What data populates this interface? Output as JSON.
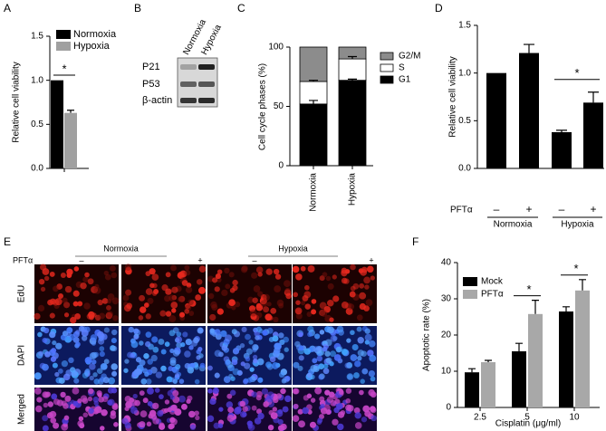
{
  "chart_data": [
    {
      "type": "bar",
      "panel": "A",
      "ylabel": "Relative cell viability",
      "series": [
        {
          "name": "Normoxia",
          "color": "#000000",
          "values": [
            1.0
          ]
        },
        {
          "name": "Hypoxia",
          "color": "#a0a0a0",
          "values": [
            0.63
          ],
          "errors": [
            0.03
          ]
        }
      ],
      "ylim": [
        0,
        1.5
      ],
      "yticks": [
        {
          "value": 0,
          "label": "0.0"
        },
        {
          "value": 0.5,
          "label": "0.5"
        },
        {
          "value": 1,
          "label": "1.0"
        },
        {
          "value": 1.5,
          "label": "1.5"
        }
      ],
      "annotation": "*"
    },
    {
      "type": "blot",
      "panel": "B",
      "lanes": [
        "Normoxia",
        "Hypoxia"
      ],
      "rows": [
        "P21",
        "P53",
        "β-actin"
      ]
    },
    {
      "type": "stacked-bar",
      "panel": "C",
      "ylabel": "Cell cycle phases (%)",
      "categories": [
        "Normoxia",
        "Hypoxia"
      ],
      "series": [
        {
          "name": "G1",
          "color": "#000000",
          "values": [
            52,
            72
          ],
          "errors": [
            3,
            1
          ]
        },
        {
          "name": "S",
          "color": "#ffffff",
          "values": [
            19,
            18
          ],
          "errors": [
            1,
            2
          ]
        },
        {
          "name": "G2/M",
          "color": "#8c8c8c",
          "values": [
            29,
            10
          ]
        }
      ],
      "ylim": [
        0,
        100
      ],
      "yticks": [
        0,
        50,
        100
      ]
    },
    {
      "type": "bar",
      "panel": "D",
      "ylabel": "Relative cell viability",
      "factor_label": "PFTα",
      "categories": [
        "–",
        "+",
        "–",
        "+"
      ],
      "groups": [
        "Normoxia",
        "Hypoxia"
      ],
      "values": [
        1.0,
        1.21,
        0.38,
        0.69
      ],
      "errors": [
        null,
        0.09,
        0.02,
        0.11
      ],
      "color": "#000000",
      "ylim": [
        0,
        1.5
      ],
      "yticks": [
        {
          "value": 0,
          "label": "0.0"
        },
        {
          "value": 0.5,
          "label": "0.5"
        },
        {
          "value": 1,
          "label": "1.0"
        },
        {
          "value": 1.5,
          "label": "1.5"
        }
      ],
      "annotation": "*"
    },
    {
      "type": "image-grid",
      "panel": "E",
      "factor_label": "PFTα",
      "groups": [
        "Normoxia",
        "Hypoxia"
      ],
      "columns": [
        "–",
        "+",
        "–",
        "+"
      ],
      "rows": [
        "EdU",
        "DAPI",
        "Merged"
      ]
    },
    {
      "type": "grouped-bar",
      "panel": "F",
      "xlabel": "Cisplatin (μg/ml)",
      "ylabel": "Apoptotic rate (%)",
      "categories": [
        "2.5",
        "5",
        "10"
      ],
      "series": [
        {
          "name": "Mock",
          "color": "#000000",
          "values": [
            9.7,
            15.5,
            26.5
          ],
          "errors": [
            1,
            2.2,
            1.3
          ]
        },
        {
          "name": "PFTα",
          "color": "#a8a8a8",
          "values": [
            12.5,
            25.8,
            32.3
          ],
          "errors": [
            0.5,
            3.8,
            3
          ]
        }
      ],
      "ylim": [
        0,
        40
      ],
      "yticks": [
        0,
        10,
        20,
        30,
        40
      ],
      "annotations": [
        "*",
        "*"
      ]
    }
  ]
}
